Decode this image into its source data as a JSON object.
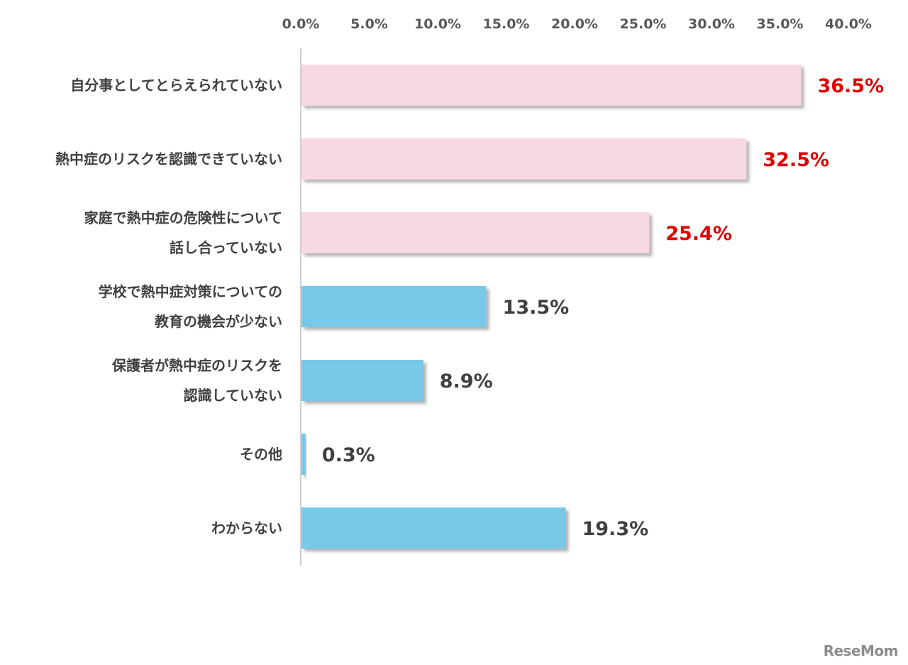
{
  "chart_data": {
    "type": "bar",
    "orientation": "horizontal",
    "categories": [
      [
        "自分事としてとらえられていない"
      ],
      [
        "熱中症のリスクを認識できていない"
      ],
      [
        "家庭で熱中症の危険性について",
        "話し合っていない"
      ],
      [
        "学校で熱中症対策についての",
        "教育の機会が少ない"
      ],
      [
        "保護者が熱中症のリスクを",
        "認識していない"
      ],
      [
        "その他"
      ],
      [
        "わからない"
      ]
    ],
    "values": [
      36.5,
      32.5,
      25.4,
      13.5,
      8.9,
      0.3,
      19.3
    ],
    "value_labels": [
      "36.5%",
      "32.5%",
      "25.4%",
      "13.5%",
      "8.9%",
      "0.3%",
      "19.3%"
    ],
    "bar_colors": [
      "#f8d8e5",
      "#f8d8e5",
      "#f8d8e5",
      "#78c8e8",
      "#78c8e8",
      "#78c8e8",
      "#78c8e8"
    ],
    "label_colors": [
      "#e00000",
      "#e00000",
      "#e00000",
      "#404040",
      "#404040",
      "#404040",
      "#404040"
    ],
    "xlim": [
      0,
      40
    ],
    "x_ticks": [
      "0.0%",
      "5.0%",
      "10.0%",
      "15.0%",
      "20.0%",
      "25.0%",
      "30.0%",
      "35.0%",
      "40.0%"
    ],
    "axis_position": "top",
    "grid": false,
    "legend": "none"
  },
  "watermark": {
    "text": "ReseMom"
  }
}
